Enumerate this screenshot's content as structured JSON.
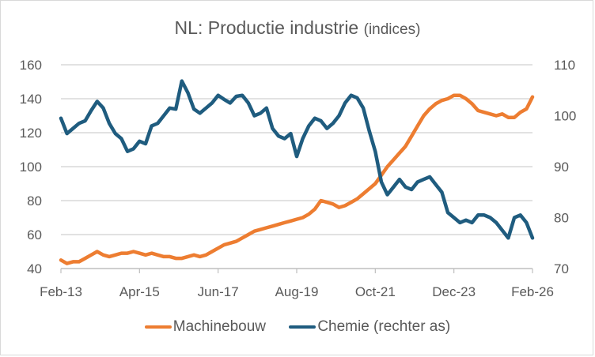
{
  "chart_data": {
    "type": "line",
    "title": "NL: Productie industrie",
    "subtitle": "(indices)",
    "xlabel": "",
    "ylabel": "",
    "x_ticks": [
      "Feb-13",
      "Apr-15",
      "Jun-17",
      "Aug-19",
      "Oct-21",
      "Dec-23",
      "Feb-26"
    ],
    "x_range": [
      "2013-02",
      "2026-02"
    ],
    "y_left": {
      "ticks": [
        "160",
        "140",
        "120",
        "100",
        "80",
        "60",
        "40"
      ],
      "range": [
        40,
        160
      ]
    },
    "y_right": {
      "ticks": [
        "110",
        "100",
        "90",
        "80",
        "70"
      ],
      "range": [
        70,
        110
      ]
    },
    "grid": true,
    "legend_position": "bottom",
    "series": [
      {
        "name": "Machinebouw",
        "axis": "left",
        "color": "#ED7D31",
        "month_offsets": [
          0,
          2,
          4,
          6,
          8,
          10,
          12,
          14,
          16,
          18,
          20,
          22,
          24,
          26,
          28,
          30,
          32,
          34,
          36,
          38,
          40,
          42,
          44,
          46,
          48,
          50,
          52,
          54,
          56,
          58,
          60,
          62,
          64,
          66,
          68,
          70,
          72,
          74,
          76,
          78,
          80,
          82,
          84,
          86,
          88,
          90,
          92,
          94,
          96,
          98,
          100,
          102,
          104,
          106,
          108,
          110,
          112,
          114,
          116,
          118,
          120,
          122,
          124,
          126,
          128,
          130,
          132,
          134,
          136,
          138,
          140,
          142,
          144,
          146,
          148,
          150,
          152,
          154,
          156
        ],
        "values": [
          45,
          43,
          44,
          44,
          46,
          48,
          50,
          48,
          47,
          48,
          49,
          49,
          50,
          49,
          48,
          49,
          48,
          47,
          47,
          46,
          46,
          47,
          48,
          47,
          48,
          50,
          52,
          54,
          55,
          56,
          58,
          60,
          62,
          63,
          64,
          65,
          66,
          67,
          68,
          69,
          70,
          72,
          75,
          80,
          79,
          78,
          76,
          77,
          79,
          81,
          84,
          87,
          90,
          95,
          100,
          104,
          108,
          112,
          118,
          124,
          130,
          134,
          137,
          139,
          140,
          142,
          142,
          140,
          137,
          133,
          132,
          131,
          130,
          131,
          129,
          129,
          132,
          134,
          141
        ]
      },
      {
        "name": "Chemie (rechter as)",
        "axis": "right",
        "color": "#1F5C7F",
        "month_offsets": [
          0,
          2,
          4,
          6,
          8,
          10,
          12,
          14,
          16,
          18,
          20,
          22,
          24,
          26,
          28,
          30,
          32,
          34,
          36,
          38,
          40,
          42,
          44,
          46,
          48,
          50,
          52,
          54,
          56,
          58,
          60,
          62,
          64,
          66,
          68,
          70,
          72,
          74,
          76,
          78,
          80,
          82,
          84,
          86,
          88,
          90,
          92,
          94,
          96,
          98,
          100,
          102,
          104,
          106,
          108,
          110,
          112,
          114,
          116,
          118,
          120,
          122,
          124,
          126,
          128,
          130,
          132,
          134,
          136,
          138,
          140,
          142,
          144,
          146,
          148,
          150,
          152,
          154,
          156
        ],
        "values": [
          99.5,
          96.5,
          97.5,
          98.5,
          99.0,
          101.0,
          102.8,
          101.5,
          98.5,
          96.5,
          95.5,
          93.0,
          93.5,
          95.0,
          94.5,
          98.0,
          98.5,
          100.0,
          101.5,
          101.3,
          106.8,
          104.5,
          101.3,
          100.5,
          101.5,
          102.5,
          104.0,
          103.2,
          102.5,
          103.8,
          104.0,
          102.5,
          100.0,
          100.5,
          101.5,
          97.5,
          96.0,
          95.5,
          96.5,
          92.0,
          95.5,
          98.0,
          99.5,
          99.0,
          97.5,
          98.5,
          100.0,
          102.5,
          104.0,
          103.5,
          101.5,
          97.0,
          93.0,
          87.0,
          84.5,
          86.0,
          87.5,
          86.0,
          85.5,
          87.0,
          87.5,
          88.0,
          86.5,
          85.0,
          81.0,
          80.0,
          79.0,
          79.5,
          79.0,
          80.5,
          80.5,
          80.0,
          79.0,
          77.5,
          76.0,
          80.0,
          80.5,
          79.0,
          76.0
        ]
      }
    ]
  }
}
